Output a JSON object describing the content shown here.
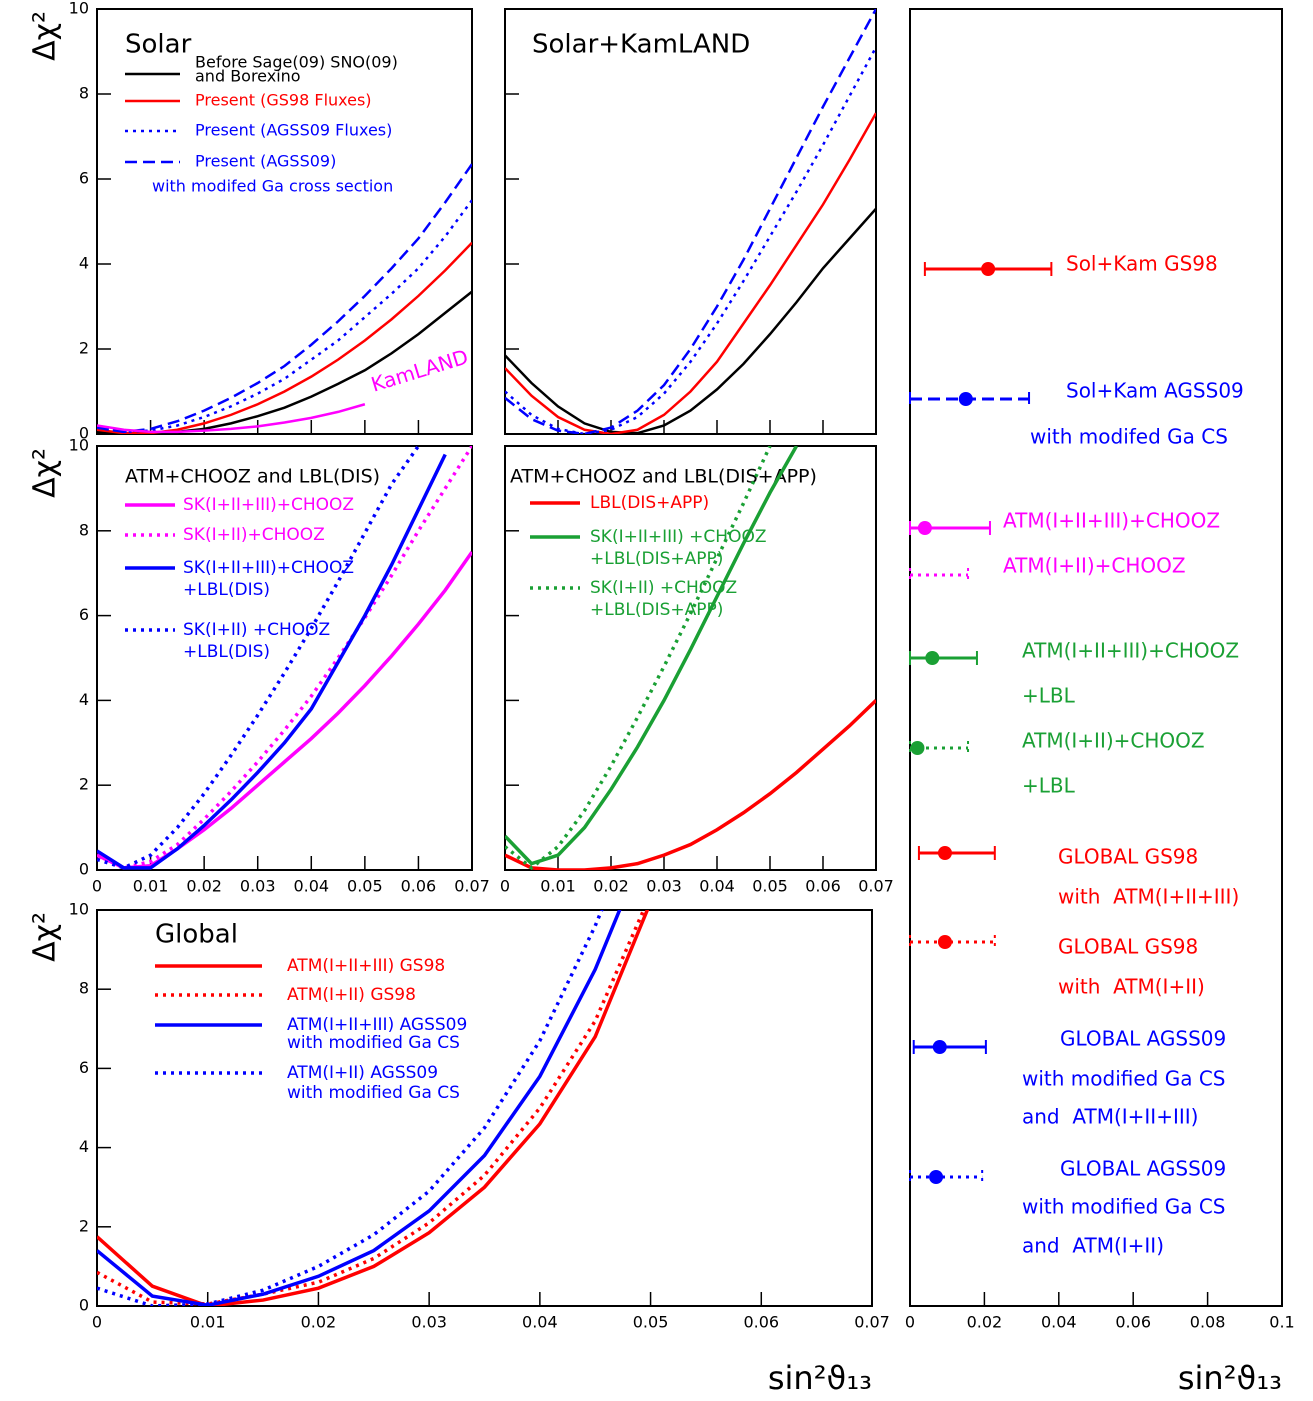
{
  "chart_data": [
    {
      "type": "line",
      "title": "Solar",
      "ylabel": "Δχ²",
      "xlim": [
        0,
        0.07
      ],
      "ylim": [
        0,
        10
      ],
      "xticks": [
        0,
        0.01,
        0.02,
        0.03,
        0.04,
        0.05,
        0.06,
        0.07
      ],
      "yticks": [
        0,
        2,
        4,
        6,
        8,
        10
      ],
      "xtick_labels": false,
      "x": [
        0,
        0.005,
        0.01,
        0.015,
        0.02,
        0.025,
        0.03,
        0.035,
        0.04,
        0.045,
        0.05,
        0.055,
        0.06,
        0.065,
        0.07
      ],
      "series": [
        {
          "name": [
            "Before Sage(09) SNO(09)",
            "and Borexino"
          ],
          "color": "#000000",
          "dash": "solid",
          "values": [
            0.05,
            0.01,
            0.0,
            0.05,
            0.12,
            0.25,
            0.42,
            0.62,
            0.88,
            1.18,
            1.5,
            1.9,
            2.35,
            2.85,
            3.35
          ]
        },
        {
          "name": [
            "Present (GS98 Fluxes)"
          ],
          "color": "#ff0000",
          "dash": "solid",
          "values": [
            0.1,
            0.02,
            0.02,
            0.1,
            0.25,
            0.45,
            0.7,
            1.0,
            1.35,
            1.75,
            2.2,
            2.7,
            3.25,
            3.85,
            4.5
          ]
        },
        {
          "name": [
            "Present (AGSS09 Fluxes)"
          ],
          "color": "#0000ff",
          "dash": "dotted",
          "values": [
            0.15,
            0.05,
            0.08,
            0.2,
            0.4,
            0.65,
            0.95,
            1.3,
            1.75,
            2.2,
            2.75,
            3.3,
            3.9,
            4.65,
            5.5
          ]
        },
        {
          "name": [
            "Present (AGSS09)",
            "with modifed Ga cross section"
          ],
          "color": "#0000ff",
          "dash": "dashed",
          "values": [
            0.15,
            0.05,
            0.12,
            0.3,
            0.55,
            0.85,
            1.2,
            1.6,
            2.1,
            2.65,
            3.25,
            3.9,
            4.6,
            5.45,
            6.35
          ]
        },
        {
          "name": [
            "KamLAND"
          ],
          "color": "#ff00ff",
          "dash": "solid",
          "values": [
            0.2,
            0.1,
            0.05,
            0.05,
            0.08,
            0.12,
            0.18,
            0.27,
            0.38,
            0.52,
            0.7,
            null,
            null,
            null,
            null
          ]
        }
      ]
    },
    {
      "type": "line",
      "title": "Solar+KamLAND",
      "xlim": [
        0,
        0.07
      ],
      "ylim": [
        0,
        10
      ],
      "xticks": [
        0,
        0.01,
        0.02,
        0.03,
        0.04,
        0.05,
        0.06,
        0.07
      ],
      "yticks": [
        0,
        2,
        4,
        6,
        8,
        10
      ],
      "xtick_labels": false,
      "ytick_labels": false,
      "x": [
        0,
        0.005,
        0.01,
        0.015,
        0.02,
        0.025,
        0.03,
        0.035,
        0.04,
        0.045,
        0.05,
        0.055,
        0.06,
        0.065,
        0.07
      ],
      "series": [
        {
          "color": "#000000",
          "dash": "solid",
          "values": [
            1.85,
            1.2,
            0.65,
            0.25,
            0.05,
            0.02,
            0.2,
            0.55,
            1.05,
            1.65,
            2.35,
            3.1,
            3.9,
            4.6,
            5.3
          ]
        },
        {
          "color": "#ff0000",
          "dash": "solid",
          "values": [
            1.55,
            0.9,
            0.4,
            0.1,
            0.0,
            0.1,
            0.45,
            1.0,
            1.7,
            2.6,
            3.5,
            4.45,
            5.4,
            6.45,
            7.55
          ]
        },
        {
          "color": "#0000ff",
          "dash": "dotted",
          "values": [
            1.0,
            0.45,
            0.12,
            0.0,
            0.1,
            0.4,
            0.95,
            1.7,
            2.6,
            3.6,
            4.65,
            5.7,
            6.8,
            7.95,
            9.1
          ]
        },
        {
          "color": "#0000ff",
          "dash": "dashed",
          "values": [
            0.85,
            0.35,
            0.08,
            0.0,
            0.15,
            0.55,
            1.15,
            2.0,
            3.0,
            4.1,
            5.3,
            6.5,
            7.7,
            8.85,
            10
          ]
        }
      ]
    },
    {
      "type": "line",
      "title": "ATM+CHOOZ and LBL(DIS)",
      "ylabel": "Δχ²",
      "xlim": [
        0,
        0.07
      ],
      "ylim": [
        0,
        10
      ],
      "xticks": [
        0,
        0.01,
        0.02,
        0.03,
        0.04,
        0.05,
        0.06,
        0.07
      ],
      "yticks": [
        0,
        2,
        4,
        6,
        8,
        10
      ],
      "x": [
        0,
        0.005,
        0.01,
        0.015,
        0.02,
        0.025,
        0.03,
        0.035,
        0.04,
        0.045,
        0.05,
        0.055,
        0.06,
        0.065,
        0.07
      ],
      "series": [
        {
          "name": [
            "SK(I+II+III)+CHOOZ"
          ],
          "color": "#ff00ff",
          "dash": "solid",
          "values": [
            0.35,
            0.05,
            0.1,
            0.5,
            0.95,
            1.45,
            2.0,
            2.55,
            3.1,
            3.7,
            4.35,
            5.05,
            5.8,
            6.6,
            7.5
          ]
        },
        {
          "name": [
            "SK(I+II)+CHOOZ"
          ],
          "color": "#ff00ff",
          "dash": "dotted",
          "values": [
            0.35,
            0.05,
            0.2,
            0.6,
            1.2,
            1.85,
            2.55,
            3.3,
            4.1,
            5.0,
            5.95,
            6.95,
            8.0,
            9.0,
            10
          ]
        },
        {
          "name": [
            "SK(I+II+III)+CHOOZ",
            "+LBL(DIS)"
          ],
          "color": "#0000ff",
          "dash": "solid",
          "values": [
            0.45,
            0.05,
            0.05,
            0.5,
            1.05,
            1.65,
            2.3,
            3.0,
            3.8,
            4.9,
            6.0,
            7.2,
            8.5,
            9.8,
            null
          ]
        },
        {
          "name": [
            "SK(I+II) +CHOOZ",
            "+LBL(DIS)"
          ],
          "color": "#0000ff",
          "dash": "dotted",
          "values": [
            0.25,
            0.05,
            0.35,
            1.0,
            1.8,
            2.7,
            3.65,
            4.65,
            5.7,
            6.8,
            7.95,
            9.1,
            10,
            null,
            null
          ]
        }
      ]
    },
    {
      "type": "line",
      "title": "ATM+CHOOZ and LBL(DIS+APP)",
      "xlim": [
        0,
        0.07
      ],
      "ylim": [
        0,
        10
      ],
      "xticks": [
        0,
        0.01,
        0.02,
        0.03,
        0.04,
        0.05,
        0.06,
        0.07
      ],
      "yticks": [
        0,
        2,
        4,
        6,
        8,
        10
      ],
      "ytick_labels": false,
      "x": [
        0,
        0.005,
        0.01,
        0.015,
        0.02,
        0.025,
        0.03,
        0.035,
        0.04,
        0.045,
        0.05,
        0.055,
        0.06,
        0.065,
        0.07
      ],
      "series": [
        {
          "name": [
            "LBL(DIS+APP)"
          ],
          "color": "#ff0000",
          "dash": "solid",
          "values": [
            0.35,
            0.05,
            0.0,
            0.0,
            0.05,
            0.15,
            0.35,
            0.6,
            0.95,
            1.35,
            1.8,
            2.3,
            2.85,
            3.4,
            4.0
          ]
        },
        {
          "name": [
            "SK(I+II+III) +CHOOZ",
            "+LBL(DIS+APP)"
          ],
          "color": "#1aa034",
          "dash": "solid",
          "values": [
            0.8,
            0.15,
            0.35,
            1.0,
            1.9,
            2.9,
            4.0,
            5.2,
            6.45,
            7.7,
            8.9,
            10,
            null,
            null,
            null
          ]
        },
        {
          "name": [
            "SK(I+II) +CHOOZ",
            "+LBL(DIS+APP)"
          ],
          "color": "#1aa034",
          "dash": "dotted",
          "values": [
            0.55,
            0.05,
            0.55,
            1.4,
            2.45,
            3.6,
            4.8,
            6.05,
            7.35,
            8.65,
            10,
            null,
            null,
            null,
            null
          ]
        }
      ]
    },
    {
      "type": "line",
      "title": "Global",
      "ylabel": "Δχ²",
      "xlabel": "sin²ϑ₁₃",
      "xlim": [
        0,
        0.07
      ],
      "ylim": [
        0,
        10
      ],
      "xticks": [
        0,
        0.01,
        0.02,
        0.03,
        0.04,
        0.05,
        0.06,
        0.07
      ],
      "yticks": [
        0,
        2,
        4,
        6,
        8,
        10
      ],
      "x": [
        0,
        0.005,
        0.01,
        0.015,
        0.02,
        0.025,
        0.03,
        0.035,
        0.04,
        0.045,
        0.05
      ],
      "series": [
        {
          "name": [
            "ATM(I+II+III) GS98"
          ],
          "color": "#ff0000",
          "dash": "solid",
          "values": [
            1.75,
            0.5,
            0.0,
            0.15,
            0.45,
            1.0,
            1.85,
            3.0,
            4.6,
            6.8,
            10.2
          ]
        },
        {
          "name": [
            "ATM(I+II) GS98"
          ],
          "color": "#ff0000",
          "dash": "dotted",
          "values": [
            0.85,
            0.1,
            0.05,
            0.3,
            0.6,
            1.2,
            2.1,
            3.3,
            5.0,
            7.2,
            10.4
          ]
        },
        {
          "name": [
            "ATM(I+II+III) AGSS09",
            "with modified Ga CS"
          ],
          "color": "#0000ff",
          "dash": "solid",
          "values": [
            1.4,
            0.25,
            0.02,
            0.3,
            0.75,
            1.4,
            2.4,
            3.8,
            5.8,
            8.5,
            11.9
          ]
        },
        {
          "name": [
            "ATM(I+II) AGSS09",
            "with modified Ga CS"
          ],
          "color": "#0000ff",
          "dash": "dotted",
          "values": [
            0.45,
            0.0,
            0.05,
            0.4,
            1.0,
            1.8,
            2.9,
            4.5,
            6.7,
            9.6,
            13
          ]
        }
      ]
    },
    {
      "type": "errorbar",
      "xlabel": "sin²ϑ₁₃",
      "xlim": [
        0,
        0.1
      ],
      "xticks": [
        0,
        0.02,
        0.04,
        0.06,
        0.08,
        0.1
      ],
      "series": [
        {
          "name": [
            "Sol+Kam GS98"
          ],
          "color": "#ff0000",
          "dash": "solid",
          "value": 0.021,
          "low": 0.004,
          "high": 0.038
        },
        {
          "name": [
            "Sol+Kam AGSS09",
            "with modifed Ga CS"
          ],
          "color": "#0000ff",
          "dash": "dashed",
          "value": 0.015,
          "low": 0,
          "high": 0.032
        },
        {
          "name": [
            "ATM(I+II+III)+CHOOZ"
          ],
          "color": "#ff00ff",
          "dash": "solid",
          "value": 0.004,
          "low": 0,
          "high": 0.0215
        },
        {
          "name": [
            "ATM(I+II)+CHOOZ"
          ],
          "color": "#ff00ff",
          "dash": "dotted",
          "value": null,
          "low": 0,
          "high": 0.0156
        },
        {
          "name": [
            "ATM(I+II+III)+CHOOZ",
            "+LBL"
          ],
          "color": "#1aa034",
          "dash": "solid",
          "value": 0.006,
          "low": 0,
          "high": 0.018
        },
        {
          "name": [
            "ATM(I+II)+CHOOZ",
            "+LBL"
          ],
          "color": "#1aa034",
          "dash": "dotted",
          "value": 0.002,
          "low": 0,
          "high": 0.0156
        },
        {
          "name": [
            "GLOBAL GS98",
            "with  ATM(I+II+III)"
          ],
          "color": "#ff0000",
          "dash": "solid",
          "value": 0.0094,
          "low": 0.0024,
          "high": 0.0228
        },
        {
          "name": [
            "GLOBAL GS98",
            "with  ATM(I+II)"
          ],
          "color": "#ff0000",
          "dash": "dotted",
          "value": 0.0094,
          "low": 0,
          "high": 0.0228
        },
        {
          "name": [
            "GLOBAL AGSS09",
            "with modified Ga CS",
            "and  ATM(I+II+III)"
          ],
          "color": "#0000ff",
          "dash": "solid",
          "value": 0.008,
          "low": 0.001,
          "high": 0.0204
        },
        {
          "name": [
            "GLOBAL AGSS09",
            "with modified Ga CS",
            "and  ATM(I+II)"
          ],
          "color": "#0000ff",
          "dash": "dotted",
          "value": 0.007,
          "low": 0,
          "high": 0.0194
        }
      ]
    }
  ]
}
